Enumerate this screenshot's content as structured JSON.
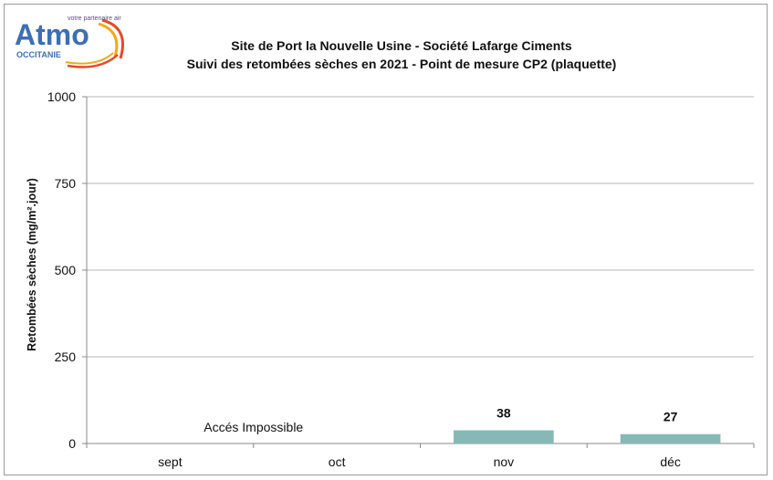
{
  "logo": {
    "tagline": "votre partenaire air",
    "word": "Atmo",
    "region": "OCCITANIE"
  },
  "chart_data": {
    "type": "bar",
    "title": "Site de Port la Nouvelle Usine - Société Lafarge Ciments",
    "subtitle": "Suivi des retombées sèches en 2021 - Point de mesure CP2 (plaquette)",
    "xlabel": "",
    "ylabel": "Retombées sèches (mg/m².jour)",
    "categories": [
      "sept",
      "oct",
      "nov",
      "déc"
    ],
    "values": [
      null,
      null,
      38,
      27
    ],
    "data_labels": [
      "",
      "",
      "38",
      "27"
    ],
    "ylim": [
      0,
      1000
    ],
    "yticks": [
      0,
      250,
      500,
      750,
      1000
    ],
    "grid": true,
    "annotation": "Accés Impossible",
    "bar_color": "#86b9b6"
  }
}
